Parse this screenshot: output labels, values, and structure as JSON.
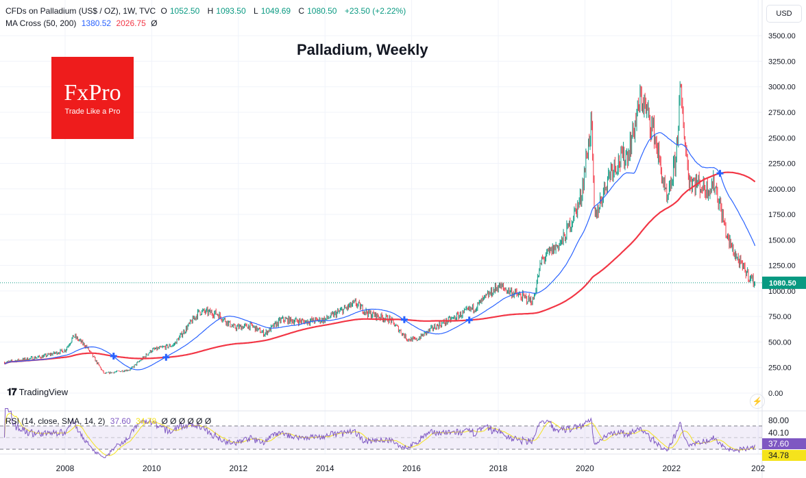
{
  "header": {
    "symbol": "CFDs on Palladium (US$ / OZ), 1W, TVC",
    "open_label": "O",
    "open": "1052.50",
    "high_label": "H",
    "high": "1093.50",
    "low_label": "L",
    "low": "1049.69",
    "close_label": "C",
    "close": "1080.50",
    "change": "+23.50 (+2.22%)",
    "ma_label": "MA Cross (50, 200)",
    "ma50": "1380.52",
    "ma200": "2026.75",
    "ma_extra": "Ø"
  },
  "rsi_legend": {
    "label": "RSI (14, close, SMA, 14, 2)",
    "rsi": "37.60",
    "sma": "34.78",
    "extras": "Ø Ø Ø Ø Ø Ø"
  },
  "currency": "USD",
  "logo": {
    "brand": "FxPro",
    "tagline": "Trade Like a Pro"
  },
  "watermark": "TradingView",
  "colors": {
    "up": "#089981",
    "down": "#f23645",
    "ma50": "#2962ff",
    "ma200": "#f23645",
    "rsi": "#7e57c2",
    "rsi_sma": "#f5e31c",
    "cross": "#2962ff"
  },
  "chart_data": {
    "type": "candlestick",
    "title": "Palladium, Weekly",
    "timeframe": "1W",
    "price_axis": {
      "ticks": [
        "3500.00",
        "3250.00",
        "3000.00",
        "2750.00",
        "2500.00",
        "2250.00",
        "2000.00",
        "1750.00",
        "1500.00",
        "1250.00",
        "1000.00",
        "750.00",
        "500.00",
        "250.00",
        "0.00"
      ],
      "range": [
        0,
        3500
      ]
    },
    "x_axis": {
      "ticks": [
        "2008",
        "2010",
        "2012",
        "2014",
        "2016",
        "2018",
        "2020",
        "2022",
        "202"
      ],
      "range": [
        2006.6,
        2023.95
      ]
    },
    "last_price": "1080.50",
    "price_path_approx": [
      [
        2006.6,
        300
      ],
      [
        2007.5,
        360
      ],
      [
        2008.0,
        420
      ],
      [
        2008.2,
        560
      ],
      [
        2008.5,
        450
      ],
      [
        2008.9,
        190
      ],
      [
        2009.5,
        230
      ],
      [
        2010.0,
        420
      ],
      [
        2010.5,
        470
      ],
      [
        2011.1,
        800
      ],
      [
        2011.5,
        780
      ],
      [
        2011.9,
        640
      ],
      [
        2012.3,
        660
      ],
      [
        2012.6,
        580
      ],
      [
        2013.0,
        720
      ],
      [
        2013.5,
        700
      ],
      [
        2014.0,
        720
      ],
      [
        2014.7,
        880
      ],
      [
        2015.0,
        780
      ],
      [
        2015.5,
        720
      ],
      [
        2015.9,
        530
      ],
      [
        2016.1,
        520
      ],
      [
        2016.5,
        640
      ],
      [
        2017.0,
        740
      ],
      [
        2017.5,
        850
      ],
      [
        2018.0,
        1050
      ],
      [
        2018.5,
        950
      ],
      [
        2018.8,
        900
      ],
      [
        2019.0,
        1300
      ],
      [
        2019.5,
        1500
      ],
      [
        2019.9,
        1900
      ],
      [
        2020.15,
        2650
      ],
      [
        2020.22,
        1700
      ],
      [
        2020.6,
        2200
      ],
      [
        2021.0,
        2350
      ],
      [
        2021.3,
        2900
      ],
      [
        2021.6,
        2550
      ],
      [
        2021.9,
        1850
      ],
      [
        2022.1,
        2300
      ],
      [
        2022.2,
        2950
      ],
      [
        2022.4,
        2100
      ],
      [
        2022.8,
        2000
      ],
      [
        2023.0,
        2050
      ],
      [
        2023.3,
        1500
      ],
      [
        2023.6,
        1250
      ],
      [
        2023.92,
        1080.5
      ]
    ],
    "indicators": {
      "ma_fast": 50,
      "ma_slow": 200,
      "rsi_period": 14,
      "rsi_sma": 14
    },
    "rsi_axis": {
      "ticks": [
        "80.00",
        "40.10"
      ],
      "bands": [
        70,
        30
      ]
    },
    "rsi_last": "37.60",
    "rsi_sma_last": "34.78"
  }
}
